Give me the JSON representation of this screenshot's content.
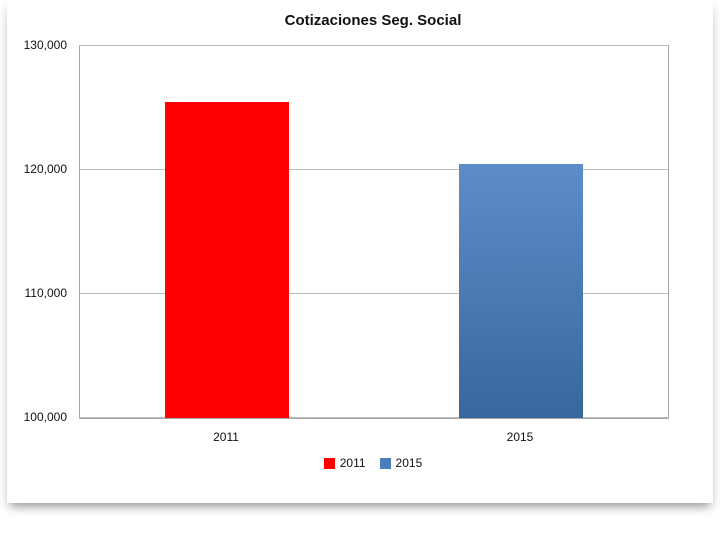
{
  "page": {
    "background": "#ffffff"
  },
  "chart_data": {
    "type": "bar",
    "title": "Cotizaciones Seg. Social",
    "categories": [
      "2011",
      "2015"
    ],
    "series": [
      {
        "name": "2011",
        "value": 125500,
        "color": "#ff0000"
      },
      {
        "name": "2015",
        "value": 120500,
        "color": "#4a7ebb",
        "gradient": [
          "#5d8cc9",
          "#38679f"
        ]
      }
    ],
    "ylim": [
      100000,
      130000
    ],
    "yticks": [
      100000,
      110000,
      120000,
      130000
    ],
    "ytick_labels": [
      "100,000",
      "110,000",
      "120,000",
      "130,000"
    ],
    "grid": true,
    "legend_position": "bottom",
    "legend": [
      "2011",
      "2015"
    ]
  }
}
